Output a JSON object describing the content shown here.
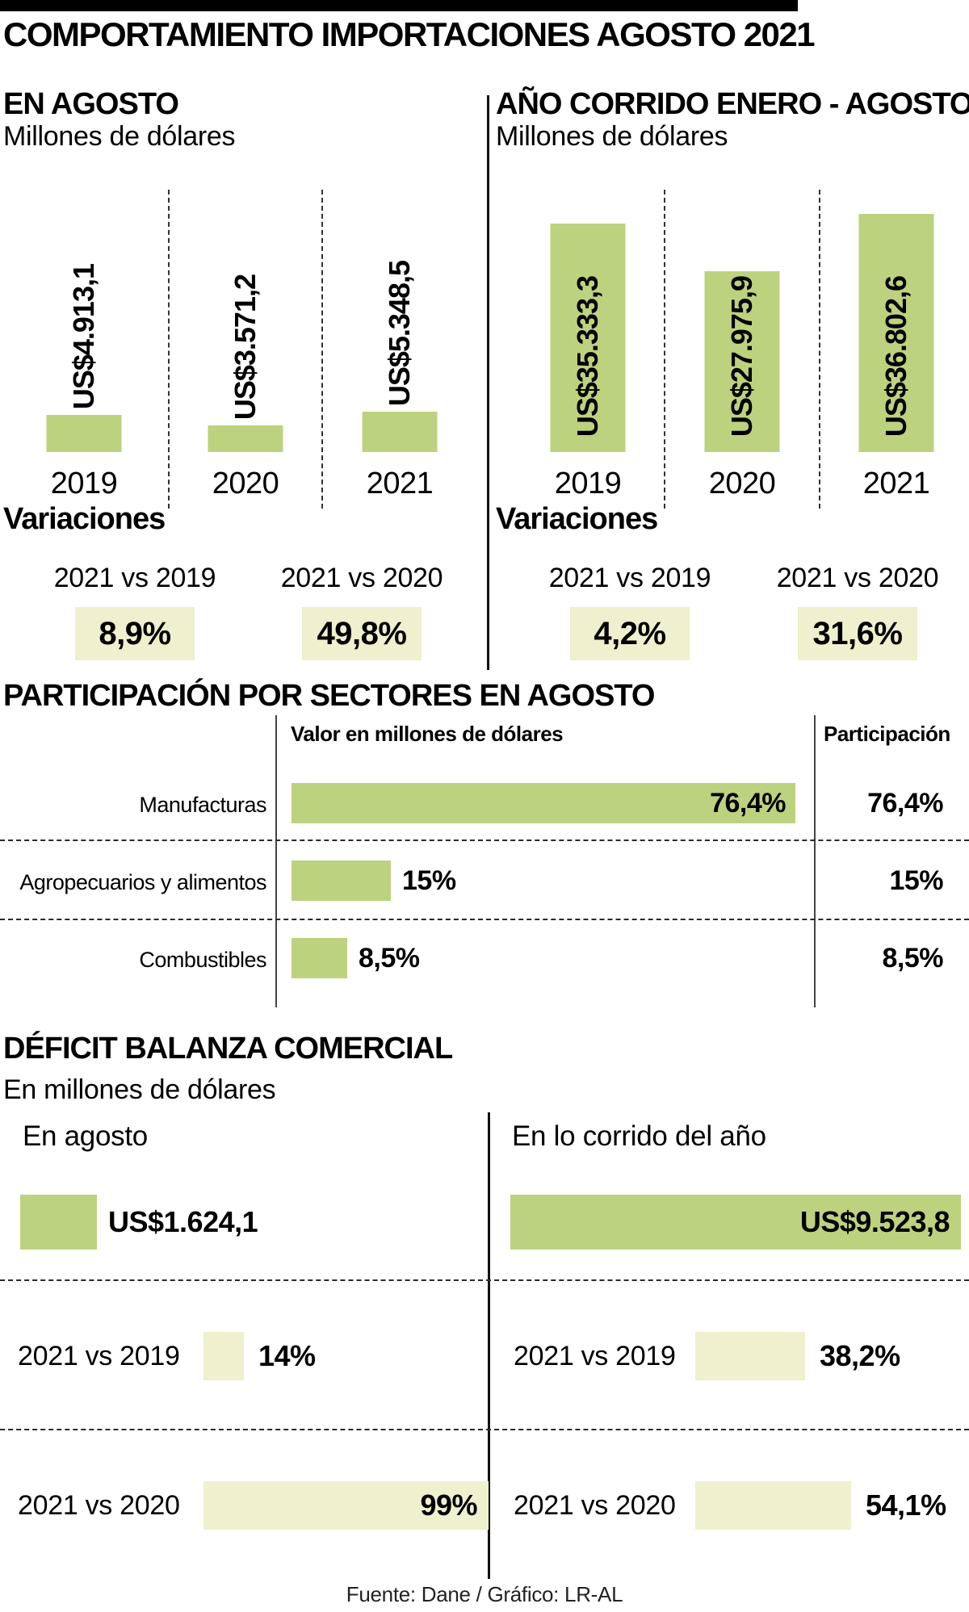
{
  "header": {
    "title": "COMPORTAMIENTO IMPORTACIONES AGOSTO 2021"
  },
  "charts": {
    "monthly": {
      "title": "EN AGOSTO",
      "subtitle": "Millones de dólares",
      "bars": [
        {
          "year": "2019",
          "label": "US$4.913,1"
        },
        {
          "year": "2020",
          "label": "US$3.571,2"
        },
        {
          "year": "2021",
          "label": "US$5.348,5"
        }
      ],
      "variations": {
        "heading": "Variaciones",
        "items": [
          {
            "label": "2021 vs 2019",
            "value": "8,9%"
          },
          {
            "label": "2021 vs 2020",
            "value": "49,8%"
          }
        ]
      }
    },
    "ytd": {
      "title": "AÑO CORRIDO ENERO - AGOSTO",
      "subtitle": "Millones de dólares",
      "bars": [
        {
          "year": "2019",
          "label": "US$35.333,3"
        },
        {
          "year": "2020",
          "label": "US$27.975,9"
        },
        {
          "year": "2021",
          "label": "US$36.802,6"
        }
      ],
      "variations": {
        "heading": "Variaciones",
        "items": [
          {
            "label": "2021 vs 2019",
            "value": "4,2%"
          },
          {
            "label": "2021 vs 2020",
            "value": "31,6%"
          }
        ]
      }
    }
  },
  "sectors": {
    "title": "PARTICIPACIÓN POR SECTORES EN AGOSTO",
    "value_column_header": "Valor en millones de dólares",
    "share_column_header": "Participación",
    "rows": [
      {
        "label": "Manufacturas",
        "bar_label": "76,4%",
        "share": "76,4%"
      },
      {
        "label": "Agropecuarios y alimentos",
        "bar_label": "15%",
        "share": "15%"
      },
      {
        "label": "Combustibles",
        "bar_label": "8,5%",
        "share": "8,5%"
      }
    ]
  },
  "deficit": {
    "title": "DÉFICIT BALANZA COMERCIAL",
    "subtitle": "En millones de dólares",
    "columns": [
      {
        "title": "En agosto",
        "bar_label": "US$1.624,1"
      },
      {
        "title": "En lo corrido del año",
        "bar_label": "US$9.523,8"
      }
    ],
    "rows": [
      {
        "left_label": "2021 vs 2019",
        "left_value": "14%",
        "right_label": "2021 vs 2019",
        "right_value": "38,2%"
      },
      {
        "left_label": "2021 vs 2020",
        "left_value": "99%",
        "right_label": "2021 vs 2020",
        "right_value": "54,1%"
      }
    ]
  },
  "footer": {
    "credit": "Fuente: Dane / Gráfico: LR-AL"
  },
  "colors": {
    "bar_green": "#bdd27e",
    "pale_green": "#eef0ce",
    "accent_black": "#000000"
  },
  "chart_data": [
    {
      "type": "bar",
      "title": "EN AGOSTO",
      "ylabel": "Millones de dólares",
      "categories": [
        "2019",
        "2020",
        "2021"
      ],
      "values": [
        4913.1,
        3571.2,
        5348.5
      ],
      "data_labels": [
        "US$4.913,1",
        "US$3.571,2",
        "US$5.348,5"
      ],
      "grid": false,
      "legend": false
    },
    {
      "type": "bar",
      "title": "AÑO CORRIDO ENERO - AGOSTO",
      "ylabel": "Millones de dólares",
      "categories": [
        "2019",
        "2020",
        "2021"
      ],
      "values": [
        35333.3,
        27975.9,
        36802.6
      ],
      "data_labels": [
        "US$35.333,3",
        "US$27.975,9",
        "US$36.802,6"
      ],
      "grid": false,
      "legend": false
    },
    {
      "type": "bar",
      "orientation": "horizontal",
      "title": "PARTICIPACIÓN POR SECTORES EN AGOSTO",
      "categories": [
        "Manufacturas",
        "Agropecuarios y alimentos",
        "Combustibles"
      ],
      "values": [
        76.4,
        15,
        8.5
      ],
      "unit": "%",
      "data_labels": [
        "76,4%",
        "15%",
        "8,5%"
      ]
    },
    {
      "type": "bar",
      "orientation": "horizontal",
      "title": "DÉFICIT BALANZA COMERCIAL",
      "ylabel": "En millones de dólares",
      "categories": [
        "En agosto",
        "En lo corrido del año"
      ],
      "values": [
        1624.1,
        9523.8
      ],
      "data_labels": [
        "US$1.624,1",
        "US$9.523,8"
      ]
    },
    {
      "type": "bar",
      "orientation": "horizontal",
      "title": "Variaciones déficit balanza comercial",
      "categories": [
        "En agosto 2021 vs 2019",
        "En agosto 2021 vs 2020",
        "En lo corrido del año 2021 vs 2019",
        "En lo corrido del año 2021 vs 2020"
      ],
      "values": [
        14,
        99,
        38.2,
        54.1
      ],
      "unit": "%",
      "data_labels": [
        "14%",
        "99%",
        "38,2%",
        "54,1%"
      ]
    }
  ]
}
